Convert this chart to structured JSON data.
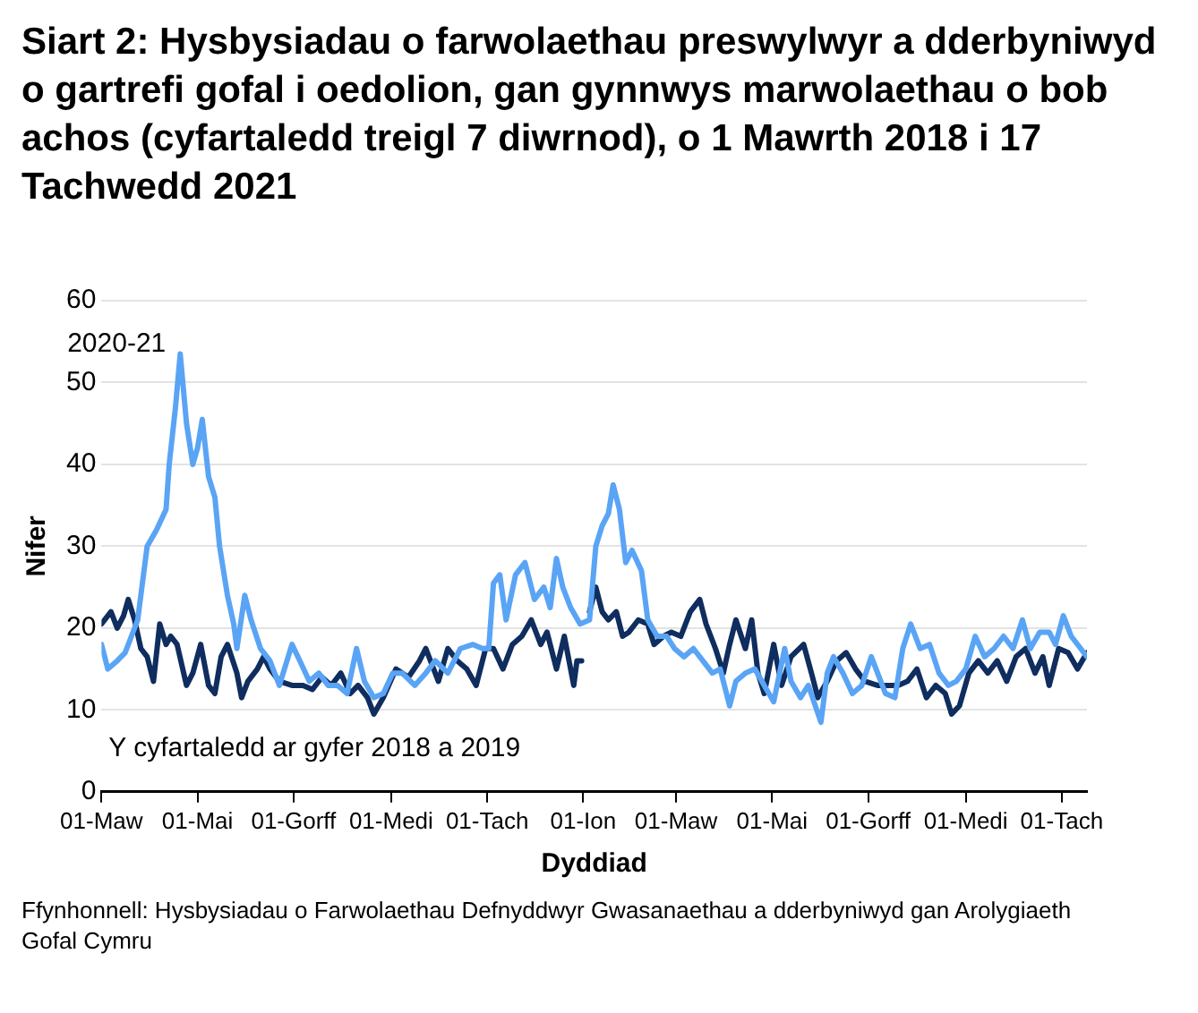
{
  "chart_data": {
    "type": "line",
    "title": "Siart 2: Hysbysiadau o farwolaethau preswylwyr a dderbyniwyd o gartrefi gofal i oedolion, gan gynnwys marwolaethau o bob achos (cyfartaledd treigl 7 diwrnod), o 1 Mawrth 2018 i 17 Tachwedd 2021",
    "xlabel": "Dyddiad",
    "ylabel": "Nifer",
    "annotations": [
      "Ffynhonnell: Hysbysiadau o Farwolaethau Defnyddwyr Gwasanaethau a dderbyniwyd gan Arolygiaeth Gofal Cymru"
    ],
    "xlim": [
      "2020-03-01",
      "2021-11-17"
    ],
    "xticks": [
      {
        "value": "2020-03-01",
        "label": "01-Maw"
      },
      {
        "value": "2020-05-01",
        "label": "01-Mai"
      },
      {
        "value": "2020-07-01",
        "label": "01-Gorff"
      },
      {
        "value": "2020-09-01",
        "label": "01-Medi"
      },
      {
        "value": "2020-11-01",
        "label": "01-Tach"
      },
      {
        "value": "2021-01-01",
        "label": "01-Ion"
      },
      {
        "value": "2021-03-01",
        "label": "01-Maw"
      },
      {
        "value": "2021-05-01",
        "label": "01-Mai"
      },
      {
        "value": "2021-07-01",
        "label": "01-Gorff"
      },
      {
        "value": "2021-09-01",
        "label": "01-Medi"
      },
      {
        "value": "2021-11-01",
        "label": "01-Tach"
      }
    ],
    "ylim": [
      0,
      60
    ],
    "yticks": [
      0,
      10,
      20,
      30,
      40,
      50,
      60
    ],
    "grid": "y",
    "legend": false,
    "marker": "none",
    "line_style": "solid",
    "series": [
      {
        "name": "2020-21",
        "color": "#5aa4f5",
        "x": [
          "2020-03-01",
          "2020-03-05",
          "2020-03-11",
          "2020-03-16",
          "2020-03-24",
          "2020-03-30",
          "2020-04-05",
          "2020-04-11",
          "2020-04-13",
          "2020-04-17",
          "2020-04-20",
          "2020-04-24",
          "2020-04-28",
          "2020-05-01",
          "2020-05-04",
          "2020-05-08",
          "2020-05-12",
          "2020-05-15",
          "2020-05-20",
          "2020-05-24",
          "2020-05-26",
          "2020-05-31",
          "2020-06-04",
          "2020-06-10",
          "2020-06-16",
          "2020-06-22",
          "2020-06-30",
          "2020-07-05",
          "2020-07-11",
          "2020-07-17",
          "2020-07-23",
          "2020-07-29",
          "2020-08-04",
          "2020-08-10",
          "2020-08-15",
          "2020-08-21",
          "2020-08-27",
          "2020-09-02",
          "2020-09-08",
          "2020-09-16",
          "2020-09-23",
          "2020-09-29",
          "2020-10-07",
          "2020-10-15",
          "2020-10-23",
          "2020-10-29",
          "2020-11-02",
          "2020-11-05",
          "2020-11-09",
          "2020-11-13",
          "2020-11-19",
          "2020-11-25",
          "2020-12-01",
          "2020-12-07",
          "2020-12-11",
          "2020-12-15",
          "2020-12-19",
          "2020-12-24",
          "2020-12-30",
          "2021-01-05",
          "2021-01-09",
          "2021-01-13",
          "2021-01-17",
          "2021-01-20",
          "2021-01-24",
          "2021-01-28",
          "2021-02-01",
          "2021-02-07",
          "2021-02-11",
          "2021-02-17",
          "2021-02-23",
          "2021-02-28",
          "2021-03-06",
          "2021-03-12",
          "2021-03-18",
          "2021-03-24",
          "2021-03-29",
          "2021-04-04",
          "2021-04-08",
          "2021-04-14",
          "2021-04-20",
          "2021-04-26",
          "2021-05-02",
          "2021-05-09",
          "2021-05-13",
          "2021-05-19",
          "2021-05-24",
          "2021-06-01",
          "2021-06-05",
          "2021-06-09",
          "2021-06-15",
          "2021-06-21",
          "2021-06-27",
          "2021-07-03",
          "2021-07-07",
          "2021-07-12",
          "2021-07-18",
          "2021-07-23",
          "2021-07-28",
          "2021-08-03",
          "2021-08-09",
          "2021-08-15",
          "2021-08-21",
          "2021-08-26",
          "2021-09-01",
          "2021-09-07",
          "2021-09-13",
          "2021-09-19",
          "2021-09-25",
          "2021-10-01",
          "2021-10-07",
          "2021-10-12",
          "2021-10-18",
          "2021-10-24",
          "2021-10-28",
          "2021-11-02",
          "2021-11-07",
          "2021-11-13",
          "2021-11-17"
        ],
        "values": [
          18,
          15,
          16,
          17,
          21,
          30,
          32,
          34.5,
          40,
          47,
          53.5,
          45,
          40,
          42,
          45.5,
          38.5,
          36,
          30,
          24,
          20.5,
          17.5,
          24,
          21,
          17.5,
          16,
          13,
          18,
          16,
          13.5,
          14.5,
          13,
          13,
          12,
          17.5,
          13.5,
          11.5,
          12,
          14.5,
          14.5,
          13,
          14.5,
          16,
          14.5,
          17.5,
          18,
          17.5,
          17.5,
          25.5,
          26.5,
          21,
          26.5,
          28,
          23.5,
          25,
          22.5,
          28.5,
          25,
          22.5,
          20.5,
          21,
          30,
          32.5,
          34,
          37.5,
          34.5,
          28,
          29.5,
          27,
          21,
          19,
          19,
          17.5,
          16.5,
          17.5,
          16,
          14.5,
          15,
          10.5,
          13.5,
          14.5,
          15,
          13,
          11,
          17.5,
          13.5,
          11.5,
          13,
          8.5,
          14.5,
          16.5,
          14.5,
          12,
          13,
          16.5,
          14.5,
          12,
          11.5,
          17.5,
          20.5,
          17.5,
          18,
          14.5,
          13,
          13.5,
          15,
          19,
          16.5,
          17.5,
          19,
          17.5,
          21,
          17.5,
          19.5,
          19.5,
          18,
          21.5,
          19,
          17.5,
          16.5
        ]
      },
      {
        "name": "Y cyfartaledd ar gyfer 2018 a 2019",
        "color": "#0f2d5e",
        "x": [
          "2020-03-01",
          "2020-03-07",
          "2020-03-11",
          "2020-03-15",
          "2020-03-18",
          "2020-03-22",
          "2020-03-26",
          "2020-03-30",
          "2020-04-03",
          "2020-04-07",
          "2020-04-11",
          "2020-04-14",
          "2020-04-18",
          "2020-04-24",
          "2020-04-28",
          "2020-05-03",
          "2020-05-08",
          "2020-05-12",
          "2020-05-16",
          "2020-05-20",
          "2020-05-26",
          "2020-05-29",
          "2020-06-02",
          "2020-06-08",
          "2020-06-12",
          "2020-06-16",
          "2020-06-22",
          "2020-06-30",
          "2020-07-07",
          "2020-07-13",
          "2020-07-19",
          "2020-07-25",
          "2020-07-31",
          "2020-08-06",
          "2020-08-11",
          "2020-08-17",
          "2020-08-21",
          "2020-08-27",
          "2020-09-04",
          "2020-09-12",
          "2020-09-19",
          "2020-09-23",
          "2020-10-01",
          "2020-10-07",
          "2020-10-13",
          "2020-10-19",
          "2020-10-25",
          "2020-10-31",
          "2020-11-05",
          "2020-11-11",
          "2020-11-17",
          "2020-11-23",
          "2020-11-29",
          "2020-12-05",
          "2020-12-09",
          "2020-12-15",
          "2020-12-20",
          "2020-12-26",
          "2020-12-28",
          "2020-12-31",
          "2021-01-02",
          "2021-01-05",
          "2021-01-09",
          "2021-01-13",
          "2021-01-17",
          "2021-01-22",
          "2021-01-26",
          "2021-01-30",
          "2021-02-05",
          "2021-02-11",
          "2021-02-15",
          "2021-02-21",
          "2021-02-26",
          "2021-03-04",
          "2021-03-10",
          "2021-03-16",
          "2021-03-20",
          "2021-03-26",
          "2021-03-31",
          "2021-04-04",
          "2021-04-08",
          "2021-04-14",
          "2021-04-18",
          "2021-04-22",
          "2021-04-26",
          "2021-05-02",
          "2021-05-07",
          "2021-05-13",
          "2021-05-21",
          "2021-05-26",
          "2021-05-30",
          "2021-06-05",
          "2021-06-11",
          "2021-06-17",
          "2021-06-23",
          "2021-06-29",
          "2021-07-07",
          "2021-07-14",
          "2021-07-20",
          "2021-07-26",
          "2021-08-01",
          "2021-08-07",
          "2021-08-13",
          "2021-08-19",
          "2021-08-23",
          "2021-08-28",
          "2021-09-03",
          "2021-09-09",
          "2021-09-15",
          "2021-09-21",
          "2021-09-27",
          "2021-10-03",
          "2021-10-09",
          "2021-10-15",
          "2021-10-20",
          "2021-10-24",
          "2021-10-30",
          "2021-11-05",
          "2021-11-11",
          "2021-11-17"
        ],
        "values": [
          20.5,
          22,
          20,
          21.5,
          23.5,
          21,
          17.5,
          16.5,
          13.5,
          20.5,
          18,
          19,
          18,
          13,
          14.5,
          18,
          13,
          12,
          16.5,
          18,
          14.5,
          11.5,
          13.5,
          15,
          16.5,
          15,
          13.5,
          13,
          13,
          12.5,
          14,
          13,
          14.5,
          12,
          13,
          11.5,
          9.5,
          11.5,
          15,
          14,
          16,
          17.5,
          13.5,
          17.5,
          16,
          15,
          13,
          17.5,
          17.5,
          15,
          18,
          19,
          21,
          18,
          19.5,
          15,
          19,
          13,
          16,
          16,
          null,
          22,
          25,
          22,
          21,
          22,
          19,
          19.5,
          21,
          20.5,
          18,
          19,
          19.5,
          19,
          22,
          23.5,
          20.5,
          17.5,
          14.5,
          18,
          21,
          17.5,
          21,
          14.5,
          12,
          18,
          13,
          16.5,
          18,
          14.5,
          11.5,
          13.5,
          16,
          17,
          15,
          13.5,
          13,
          13,
          13,
          13.5,
          15,
          11.5,
          13,
          12,
          9.5,
          10.5,
          14.5,
          16,
          14.5,
          16,
          13.5,
          16.5,
          17.5,
          14.5,
          16.5,
          13,
          17.5,
          17,
          15,
          17
        ]
      }
    ]
  }
}
